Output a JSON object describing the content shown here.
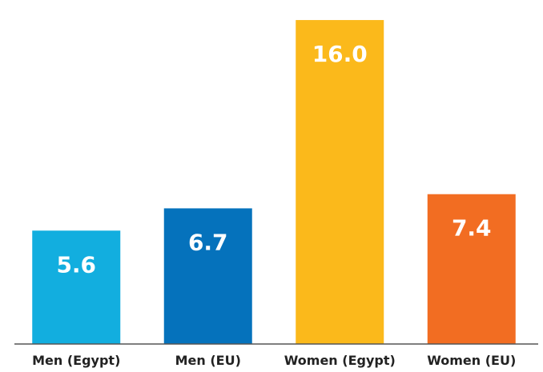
{
  "chart_data": {
    "type": "bar",
    "categories": [
      "Men (Egypt)",
      "Men (EU)",
      "Women (Egypt)",
      "Women (EU)"
    ],
    "values": [
      5.6,
      6.7,
      16.0,
      7.4
    ],
    "value_labels": [
      "5.6",
      "6.7",
      "16.0",
      "7.4"
    ],
    "colors": [
      "#12aedf",
      "#0572bc",
      "#fbb91b",
      "#f26d22"
    ],
    "ylim": [
      0,
      16.2
    ]
  }
}
